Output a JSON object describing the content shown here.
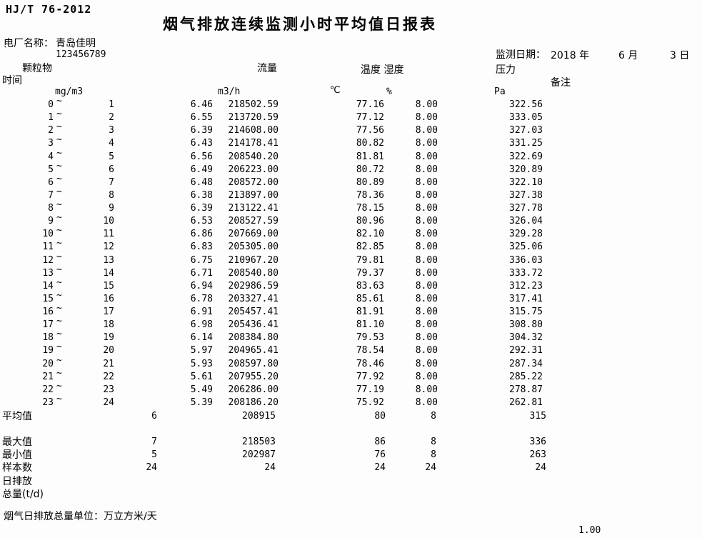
{
  "header": {
    "standard": "HJ/T 76-2012",
    "title": "烟气排放连续监测小时平均值日报表",
    "plant_label": "电厂名称：",
    "plant_name": "青岛佳明",
    "stray_mark": "`",
    "plant_code": "123456789",
    "date_label": "监测日期：",
    "date_year": "2018 年",
    "date_month": "6 月",
    "date_day": "3 日"
  },
  "table": {
    "col_time": "时间",
    "col_dust": "颗粒物",
    "col_flow": "流量",
    "col_temp_humidity": "温度 湿度",
    "col_pressure": "压力",
    "col_remark": "备注",
    "unit_dust": "mg/m3",
    "unit_flow": "m3/h",
    "unit_temp": "℃",
    "unit_humidity": "%",
    "unit_pressure": "Pa",
    "tilde": "~"
  },
  "rows": [
    {
      "start": "0",
      "end": "1",
      "dust": "6.46",
      "flow": "218502.59",
      "temp": "77.16",
      "humidity": "8.00",
      "pressure": "322.56"
    },
    {
      "start": "1",
      "end": "2",
      "dust": "6.55",
      "flow": "213720.59",
      "temp": "77.12",
      "humidity": "8.00",
      "pressure": "333.05"
    },
    {
      "start": "2",
      "end": "3",
      "dust": "6.39",
      "flow": "214608.00",
      "temp": "77.56",
      "humidity": "8.00",
      "pressure": "327.03"
    },
    {
      "start": "3",
      "end": "4",
      "dust": "6.43",
      "flow": "214178.41",
      "temp": "80.82",
      "humidity": "8.00",
      "pressure": "331.25"
    },
    {
      "start": "4",
      "end": "5",
      "dust": "6.56",
      "flow": "208540.20",
      "temp": "81.81",
      "humidity": "8.00",
      "pressure": "322.69"
    },
    {
      "start": "5",
      "end": "6",
      "dust": "6.49",
      "flow": "206223.00",
      "temp": "80.72",
      "humidity": "8.00",
      "pressure": "320.89"
    },
    {
      "start": "6",
      "end": "7",
      "dust": "6.48",
      "flow": "208572.00",
      "temp": "80.89",
      "humidity": "8.00",
      "pressure": "322.10"
    },
    {
      "start": "7",
      "end": "8",
      "dust": "6.38",
      "flow": "213897.00",
      "temp": "78.36",
      "humidity": "8.00",
      "pressure": "327.38"
    },
    {
      "start": "8",
      "end": "9",
      "dust": "6.39",
      "flow": "213122.41",
      "temp": "78.15",
      "humidity": "8.00",
      "pressure": "327.78"
    },
    {
      "start": "9",
      "end": "10",
      "dust": "6.53",
      "flow": "208527.59",
      "temp": "80.96",
      "humidity": "8.00",
      "pressure": "326.04"
    },
    {
      "start": "10",
      "end": "11",
      "dust": "6.86",
      "flow": "207669.00",
      "temp": "82.10",
      "humidity": "8.00",
      "pressure": "329.28"
    },
    {
      "start": "11",
      "end": "12",
      "dust": "6.83",
      "flow": "205305.00",
      "temp": "82.85",
      "humidity": "8.00",
      "pressure": "325.06"
    },
    {
      "start": "12",
      "end": "13",
      "dust": "6.75",
      "flow": "210967.20",
      "temp": "79.81",
      "humidity": "8.00",
      "pressure": "336.03"
    },
    {
      "start": "13",
      "end": "14",
      "dust": "6.71",
      "flow": "208540.80",
      "temp": "79.37",
      "humidity": "8.00",
      "pressure": "333.72"
    },
    {
      "start": "14",
      "end": "15",
      "dust": "6.94",
      "flow": "202986.59",
      "temp": "83.63",
      "humidity": "8.00",
      "pressure": "312.23"
    },
    {
      "start": "15",
      "end": "16",
      "dust": "6.78",
      "flow": "203327.41",
      "temp": "85.61",
      "humidity": "8.00",
      "pressure": "317.41"
    },
    {
      "start": "16",
      "end": "17",
      "dust": "6.91",
      "flow": "205457.41",
      "temp": "81.91",
      "humidity": "8.00",
      "pressure": "315.75"
    },
    {
      "start": "17",
      "end": "18",
      "dust": "6.98",
      "flow": "205436.41",
      "temp": "81.10",
      "humidity": "8.00",
      "pressure": "308.80"
    },
    {
      "start": "18",
      "end": "19",
      "dust": "6.14",
      "flow": "208384.80",
      "temp": "79.53",
      "humidity": "8.00",
      "pressure": "304.32"
    },
    {
      "start": "19",
      "end": "20",
      "dust": "5.97",
      "flow": "204965.41",
      "temp": "78.54",
      "humidity": "8.00",
      "pressure": "292.31"
    },
    {
      "start": "20",
      "end": "21",
      "dust": "5.93",
      "flow": "208597.80",
      "temp": "78.46",
      "humidity": "8.00",
      "pressure": "287.34"
    },
    {
      "start": "21",
      "end": "22",
      "dust": "5.61",
      "flow": "207955.20",
      "temp": "77.92",
      "humidity": "8.00",
      "pressure": "285.22"
    },
    {
      "start": "22",
      "end": "23",
      "dust": "5.49",
      "flow": "206286.00",
      "temp": "77.19",
      "humidity": "8.00",
      "pressure": "278.87"
    },
    {
      "start": "23",
      "end": "24",
      "dust": "5.39",
      "flow": "208186.20",
      "temp": "75.92",
      "humidity": "8.00",
      "pressure": "262.81"
    }
  ],
  "summary": {
    "average": {
      "label": "平均值",
      "dust": "6",
      "flow": "208915",
      "temp": "80",
      "humidity": "8",
      "pressure": "315"
    },
    "max": {
      "label": "最大值",
      "dust": "7",
      "flow": "218503",
      "temp": "86",
      "humidity": "8",
      "pressure": "336"
    },
    "min": {
      "label": "最小值",
      "dust": "5",
      "flow": "202987",
      "temp": "76",
      "humidity": "8",
      "pressure": "263"
    },
    "samples": {
      "label": "样本数",
      "dust": "24",
      "flow": "24",
      "temp": "24",
      "humidity": "24",
      "pressure": "24"
    }
  },
  "daily_emission": {
    "line1": "日排放",
    "line2": "总量(t/d)"
  },
  "footer": {
    "unit_note": "烟气日排放总量单位：万立方米/天",
    "scale": "1.00"
  }
}
